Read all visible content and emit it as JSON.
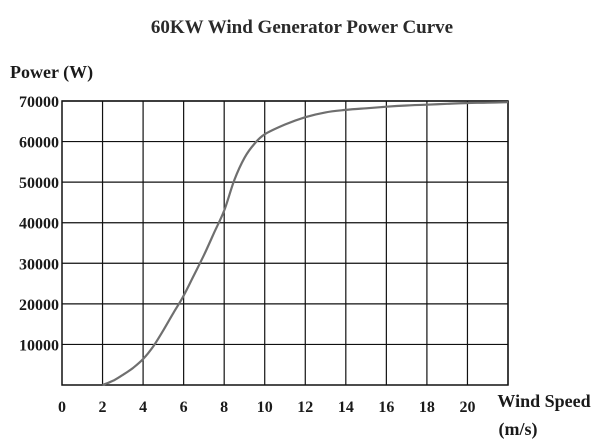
{
  "chart_data": {
    "type": "line",
    "title": "60KW Wind Generator Power Curve",
    "ylabel": "Power (W)",
    "xlabel": "Wind Speed",
    "xlabel_unit": "(m/s)",
    "xlim": [
      0,
      22
    ],
    "ylim": [
      0,
      70000
    ],
    "x_ticks": [
      0,
      2,
      4,
      6,
      8,
      10,
      12,
      14,
      16,
      18,
      20
    ],
    "y_ticks": [
      10000,
      20000,
      30000,
      40000,
      50000,
      60000,
      70000
    ],
    "grid": true,
    "series": [
      {
        "x": [
          2,
          2.5,
          3,
          3.5,
          4,
          4.5,
          5,
          5.5,
          6,
          6.5,
          7,
          7.5,
          8,
          8.5,
          9,
          9.5,
          10,
          11,
          12,
          13,
          14,
          15,
          16,
          17,
          18,
          19,
          20,
          21,
          22
        ],
        "y": [
          0,
          1000,
          2500,
          4200,
          6400,
          9500,
          13500,
          17800,
          22000,
          27000,
          32000,
          37500,
          43000,
          50500,
          56000,
          59500,
          61800,
          64200,
          66000,
          67200,
          67800,
          68200,
          68600,
          68900,
          69100,
          69300,
          69500,
          69600,
          69700
        ]
      }
    ],
    "colors": {
      "curve": "#6f6f6f",
      "grid": "#111111"
    }
  }
}
